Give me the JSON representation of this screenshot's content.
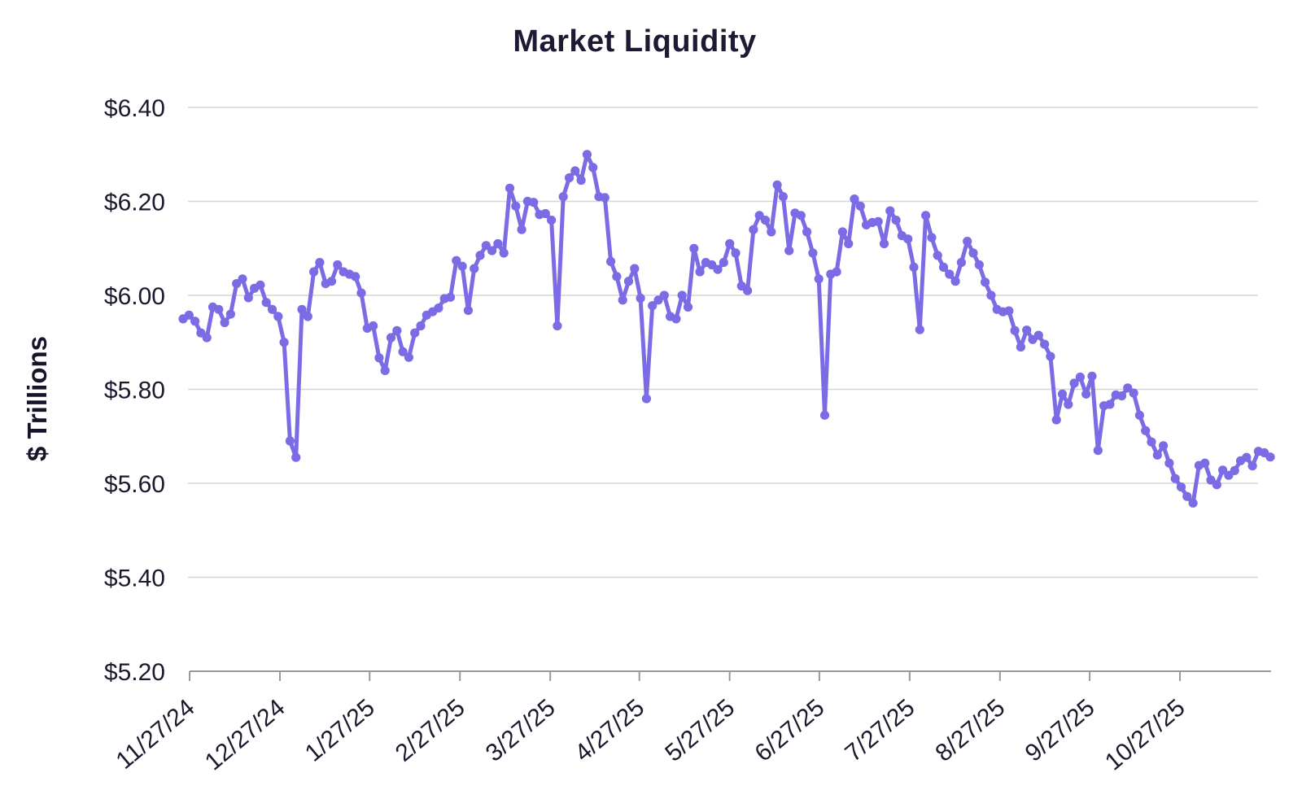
{
  "title": "Market Liquidity",
  "y_axis": {
    "label": "$ Trillions",
    "tick_labels": [
      "$6.40",
      "$6.20",
      "$6.00",
      "$5.80",
      "$5.60",
      "$5.40",
      "$5.20"
    ],
    "tick_values": [
      6.4,
      6.2,
      6.0,
      5.8,
      5.6,
      5.4,
      5.2
    ]
  },
  "x_axis": {
    "tick_labels": [
      "11/27/24",
      "12/27/24",
      "1/27/25",
      "2/27/25",
      "3/27/25",
      "4/27/25",
      "5/27/25",
      "6/27/25",
      "7/27/25",
      "8/27/25",
      "9/27/25",
      "10/27/25"
    ],
    "tick_indices": [
      1.1,
      16.3,
      31.4,
      46.6,
      61.8,
      76.8,
      92.0,
      107.1,
      122.3,
      137.5,
      152.6,
      167.8
    ]
  },
  "colors": {
    "line": "#7b6be4",
    "marker": "#7b6be4",
    "grid": "#d6d6d6",
    "axis": "#999999",
    "tick_text": "#1a1a2e",
    "title_text": "#1d1b33"
  },
  "chart_data": {
    "type": "line",
    "title": "Market Liquidity",
    "xlabel": "",
    "ylabel": "$ Trillions",
    "ylim": [
      5.2,
      6.4
    ],
    "y_tick_step": 0.2,
    "grid": "horizontal",
    "legend": "none",
    "x_tick_labels": [
      "11/27/24",
      "12/27/24",
      "1/27/25",
      "2/27/25",
      "3/27/25",
      "4/27/25",
      "5/27/25",
      "6/27/25",
      "7/27/25",
      "8/27/25",
      "9/27/25",
      "10/27/25"
    ],
    "x_tick_indices": [
      1.1,
      16.3,
      31.4,
      46.6,
      61.8,
      76.8,
      92.0,
      107.1,
      122.3,
      137.5,
      152.6,
      167.8
    ],
    "series_name": "Market Liquidity ($ Trillions)",
    "values": [
      5.95,
      5.958,
      5.945,
      5.92,
      5.91,
      5.975,
      5.97,
      5.942,
      5.96,
      6.025,
      6.035,
      5.995,
      6.015,
      6.022,
      5.985,
      5.97,
      5.955,
      5.9,
      5.69,
      5.655,
      5.97,
      5.955,
      6.05,
      6.07,
      6.025,
      6.03,
      6.065,
      6.05,
      6.045,
      6.04,
      6.005,
      5.93,
      5.935,
      5.867,
      5.84,
      5.91,
      5.925,
      5.88,
      5.868,
      5.92,
      5.935,
      5.958,
      5.965,
      5.973,
      5.993,
      5.996,
      6.074,
      6.062,
      5.968,
      6.057,
      6.085,
      6.106,
      6.095,
      6.11,
      6.09,
      6.228,
      6.19,
      6.14,
      6.2,
      6.198,
      6.172,
      6.174,
      6.16,
      5.935,
      6.21,
      6.25,
      6.265,
      6.245,
      6.3,
      6.272,
      6.21,
      6.208,
      6.072,
      6.04,
      5.99,
      6.03,
      6.057,
      5.994,
      5.78,
      5.978,
      5.99,
      6.0,
      5.955,
      5.95,
      6.0,
      5.975,
      6.1,
      6.05,
      6.07,
      6.065,
      6.055,
      6.07,
      6.11,
      6.09,
      6.02,
      6.01,
      6.14,
      6.17,
      6.16,
      6.135,
      6.235,
      6.21,
      6.095,
      6.175,
      6.17,
      6.135,
      6.09,
      6.035,
      5.745,
      6.045,
      6.05,
      6.135,
      6.11,
      6.205,
      6.19,
      6.15,
      6.155,
      6.157,
      6.11,
      6.18,
      6.16,
      6.127,
      6.12,
      6.06,
      5.927,
      6.17,
      6.123,
      6.085,
      6.06,
      6.045,
      6.03,
      6.07,
      6.115,
      6.09,
      6.065,
      6.028,
      6.0,
      5.97,
      5.965,
      5.967,
      5.925,
      5.89,
      5.926,
      5.906,
      5.915,
      5.896,
      5.87,
      5.735,
      5.79,
      5.768,
      5.813,
      5.826,
      5.79,
      5.828,
      5.67,
      5.765,
      5.768,
      5.788,
      5.786,
      5.803,
      5.792,
      5.745,
      5.712,
      5.688,
      5.66,
      5.68,
      5.643,
      5.61,
      5.592,
      5.572,
      5.558,
      5.638,
      5.643,
      5.607,
      5.597,
      5.628,
      5.617,
      5.627,
      5.648,
      5.655,
      5.637,
      5.668,
      5.665,
      5.656
    ]
  }
}
